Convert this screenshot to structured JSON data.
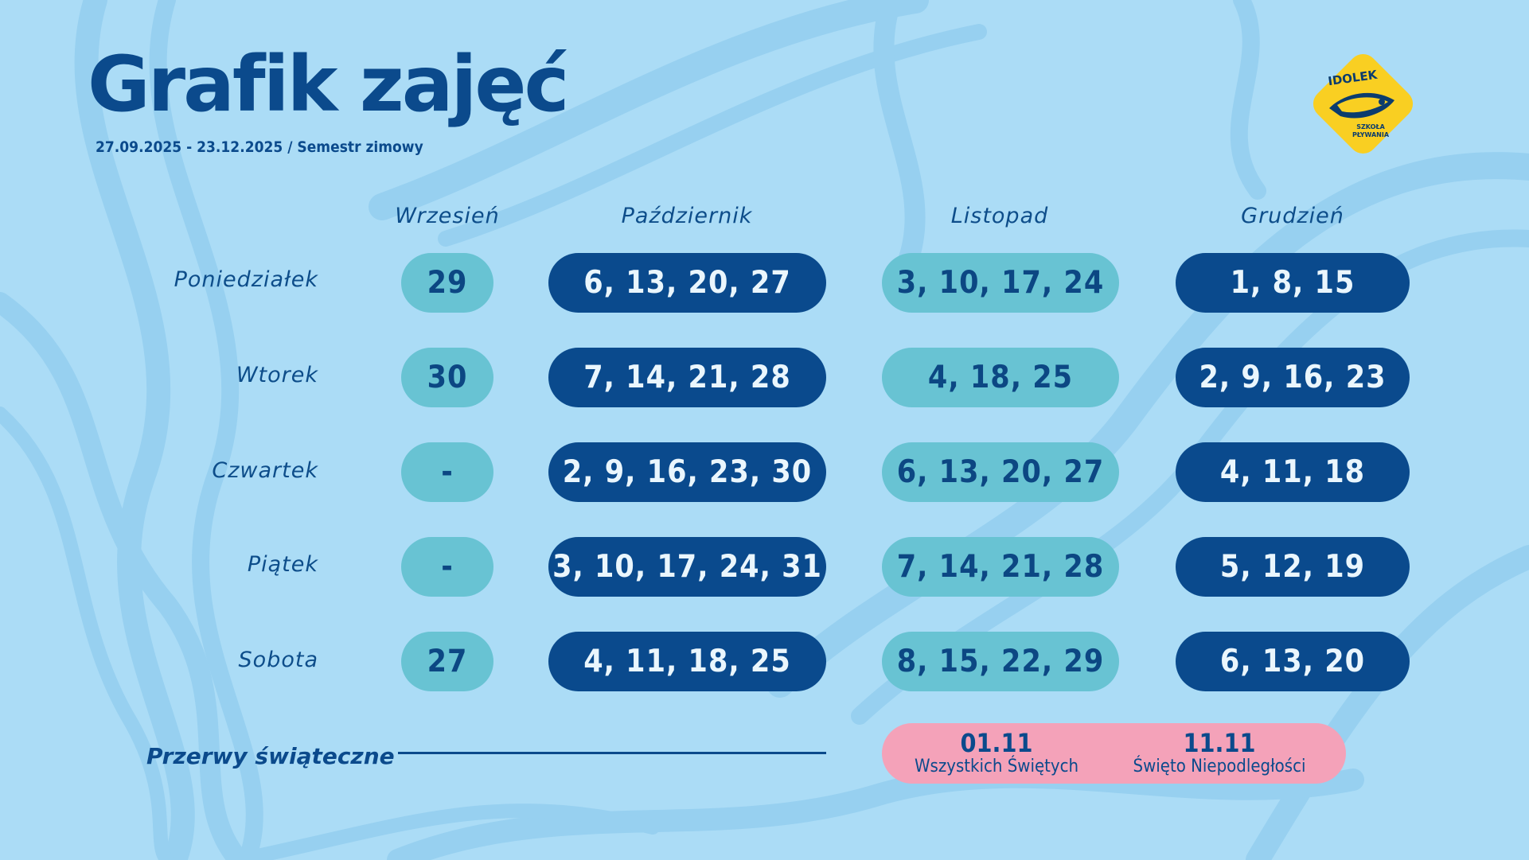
{
  "header": {
    "title": "Grafik zajęć",
    "subtitle": "27.09.2025 - 23.12.2025  / Semestr zimowy"
  },
  "logo": {
    "brand": "IDOLEK",
    "tagline_line1": "SZKOŁA",
    "tagline_line2": "PŁYWANIA",
    "colors": {
      "diamond": "#f9cf22",
      "ink": "#0b3c6e"
    }
  },
  "months": [
    "Wrzesień",
    "Październik",
    "Listopad",
    "Grudzień"
  ],
  "days": [
    "Poniedziałek",
    "Wtorek",
    "Czwartek",
    "Piątek",
    "Sobota"
  ],
  "schedule": [
    [
      "29",
      "6, 13, 20, 27",
      "3, 10, 17, 24",
      "1, 8, 15"
    ],
    [
      "30",
      "7, 14, 21, 28",
      "4, 18, 25",
      "2, 9, 16, 23"
    ],
    [
      "-",
      "2, 9, 16, 23, 30",
      "6, 13, 20, 27",
      "4, 11, 18"
    ],
    [
      "-",
      "3, 10, 17, 24, 31",
      "7, 14, 21, 28",
      "5, 12, 19"
    ],
    [
      "27",
      "4, 11, 18, 25",
      "8, 15, 22, 29",
      "6, 13, 20"
    ]
  ],
  "breaks": {
    "label": "Przerwy świąteczne",
    "holidays": [
      {
        "date": "01.11",
        "name": "Wszystkich Świętych"
      },
      {
        "date": "11.11",
        "name": "Święto Niepodległości"
      }
    ]
  },
  "colors": {
    "background": "#abdcf6",
    "wave": "#97d0f0",
    "navy": "#0b4a8c",
    "pill_light": "#68c3d3",
    "pill_dark": "#0a4a8d",
    "holiday_pink": "#f4a2b9"
  }
}
